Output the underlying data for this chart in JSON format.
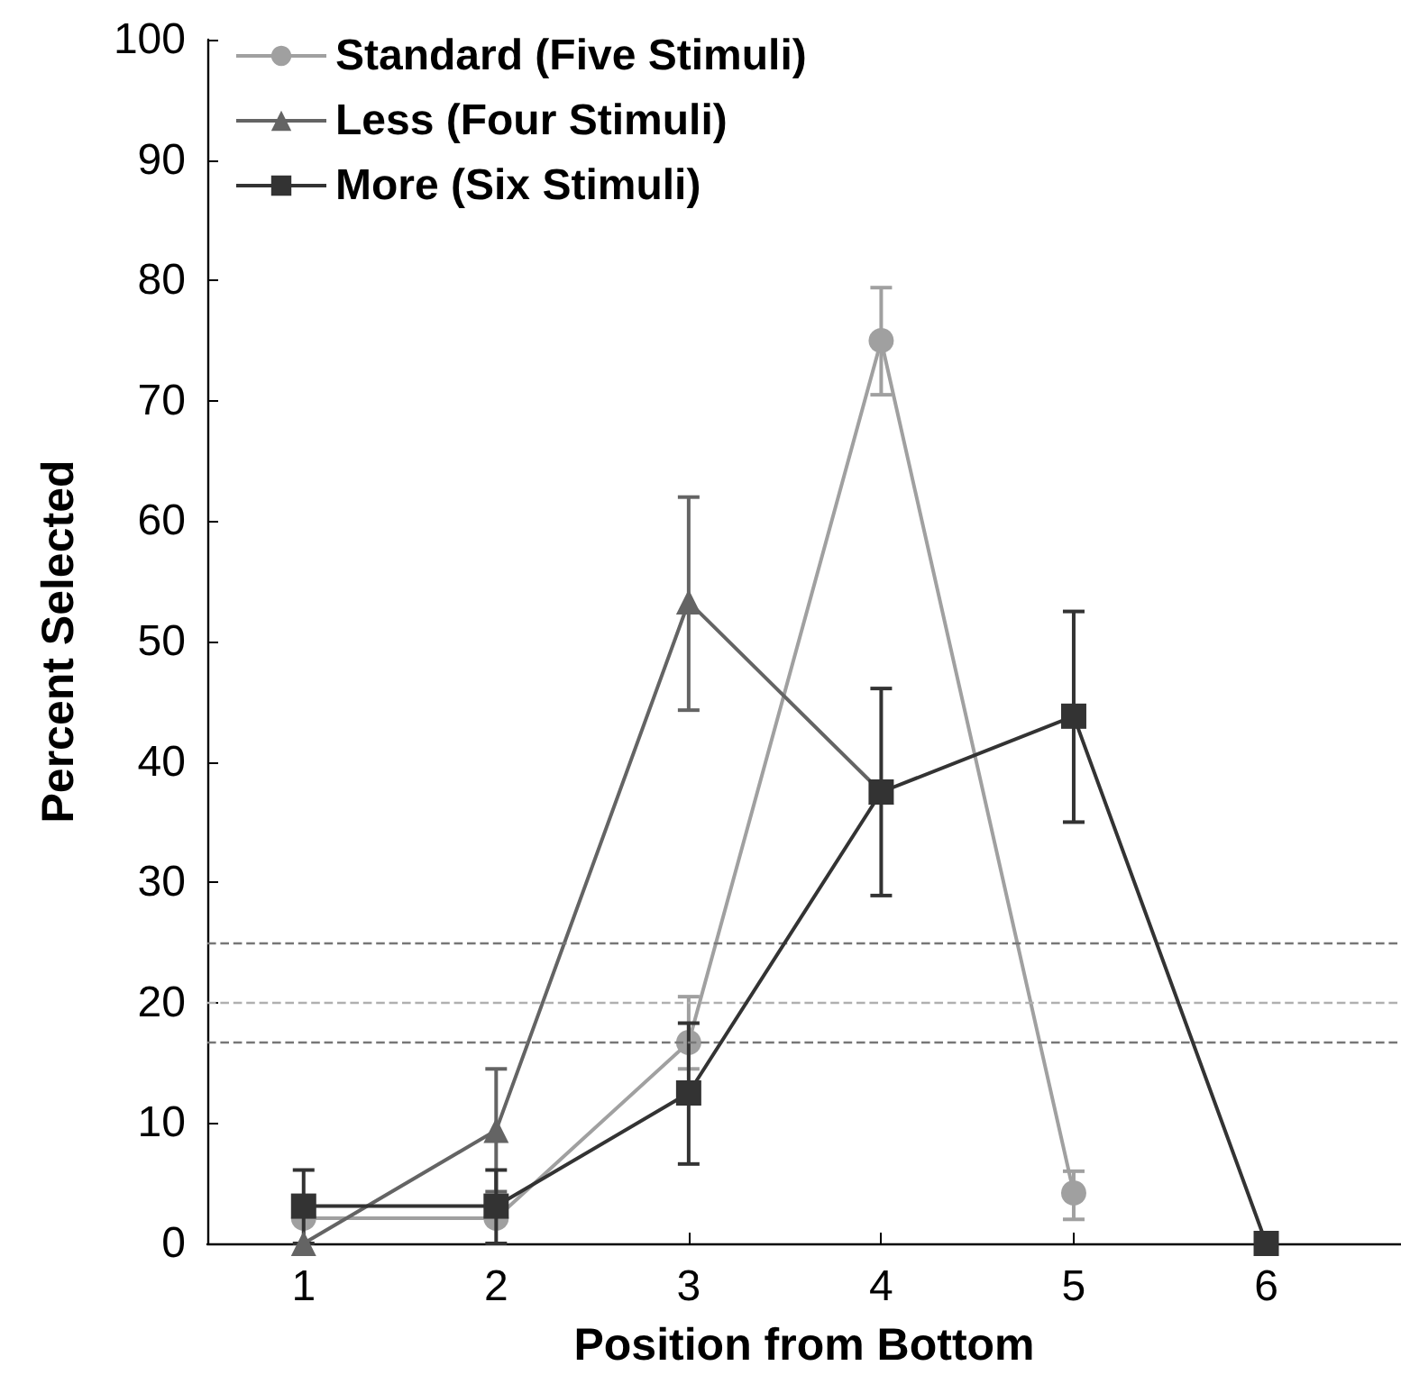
{
  "chart_data": {
    "type": "line",
    "xlabel": "Position from Bottom",
    "ylabel": "Percent Selected",
    "x": [
      1,
      2,
      3,
      4,
      5,
      6
    ],
    "series": [
      {
        "name": "Standard (Five Stimuli)",
        "color": "#a0a0a0",
        "marker": "circle",
        "values": [
          2.1,
          2.1,
          16.7,
          75,
          4.2,
          null
        ],
        "errors": [
          null,
          null,
          [
            14.5,
            20.5
          ],
          [
            70.5,
            79.4
          ],
          [
            2,
            6
          ],
          null
        ]
      },
      {
        "name": "Less (Four Stimuli)",
        "color": "#646464",
        "marker": "triangle",
        "values": [
          0,
          9.4,
          53.3,
          37.5,
          null,
          null
        ],
        "errors": [
          null,
          [
            4.3,
            14.5
          ],
          [
            44.3,
            62
          ],
          null,
          null,
          null
        ]
      },
      {
        "name": "More (Six Stimuli)",
        "color": "#333333",
        "marker": "square",
        "values": [
          3.1,
          3.1,
          12.5,
          37.5,
          43.8,
          0
        ],
        "errors": [
          [
            0,
            6.1
          ],
          [
            0,
            6.1
          ],
          [
            6.6,
            18.3
          ],
          [
            28.9,
            46.1
          ],
          [
            35,
            52.5
          ],
          null
        ]
      }
    ],
    "xlim": [
      0.5,
      6.7
    ],
    "xticks": [
      1,
      2,
      3,
      4,
      5,
      6
    ],
    "ylim": [
      0,
      100
    ],
    "yticks": [
      0,
      10,
      20,
      30,
      40,
      50,
      60,
      70,
      80,
      90,
      100
    ],
    "ref_lines": [
      {
        "axis": "y",
        "value": 25,
        "color": "#777777",
        "line_style": "dashed"
      },
      {
        "axis": "y",
        "value": 20,
        "color": "#b0b0b0",
        "line_style": "dashed"
      },
      {
        "axis": "y",
        "value": 16.7,
        "color": "#777777",
        "line_style": "dashed"
      }
    ],
    "legend": "top left",
    "grid": false,
    "line_style": "solid"
  }
}
